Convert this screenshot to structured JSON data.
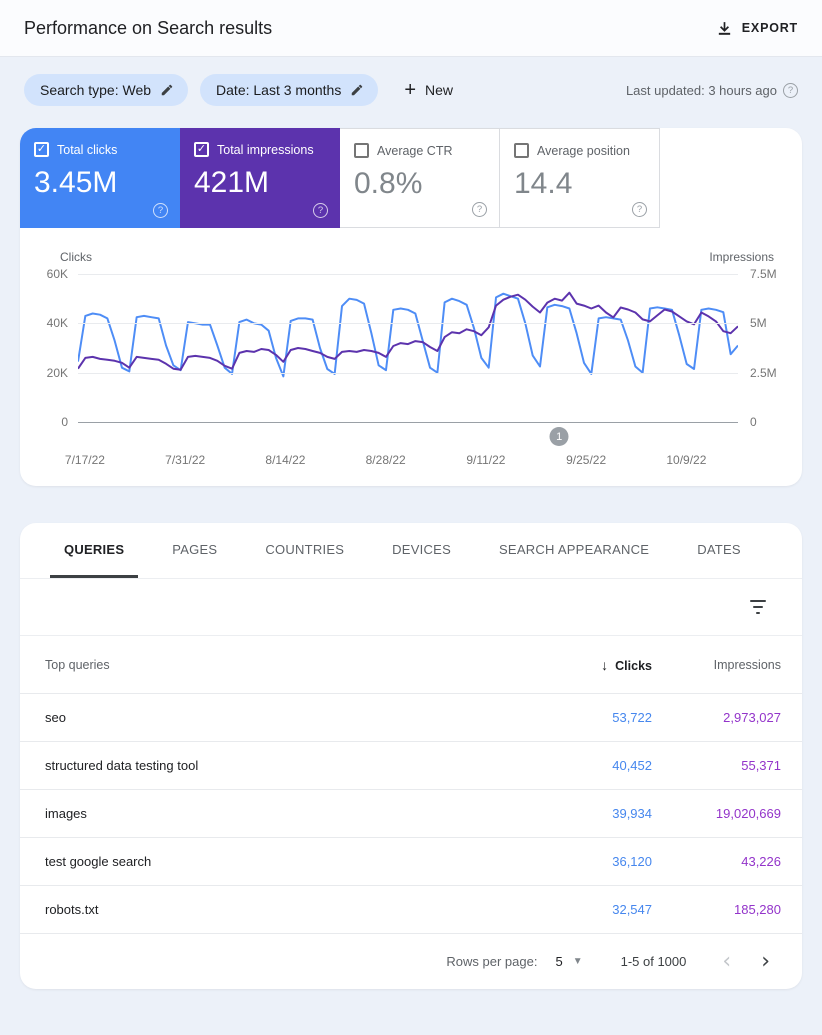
{
  "header": {
    "title": "Performance on Search results",
    "export_label": "EXPORT"
  },
  "filters": {
    "chips": [
      {
        "label": "Search type: Web"
      },
      {
        "label": "Date: Last 3 months"
      }
    ],
    "new_label": "New",
    "last_updated": "Last updated: 3 hours ago"
  },
  "icons": {
    "plus": "+",
    "check": "✓",
    "help": "?",
    "sort_desc": "↓",
    "dropdown": "▼",
    "chevron_left": "‹",
    "chevron_right": "›"
  },
  "metrics": [
    {
      "label": "Total clicks",
      "value": "3.45M",
      "checked": true,
      "color": "#4285f4"
    },
    {
      "label": "Total impressions",
      "value": "421M",
      "checked": true,
      "color": "#5c33ad"
    },
    {
      "label": "Average CTR",
      "value": "0.8%",
      "checked": false,
      "color": ""
    },
    {
      "label": "Average position",
      "value": "14.4",
      "checked": false,
      "color": ""
    }
  ],
  "chart_data": {
    "type": "line",
    "title": "",
    "left_axis": {
      "label": "Clicks",
      "ticks": [
        "60K",
        "40K",
        "20K",
        "0"
      ],
      "max": 60000
    },
    "right_axis": {
      "label": "Impressions",
      "ticks": [
        "7.5M",
        "5M",
        "2.5M",
        "0"
      ],
      "max": 7500000
    },
    "x_tick_labels": [
      "7/17/22",
      "7/31/22",
      "8/14/22",
      "8/28/22",
      "9/11/22",
      "9/25/22",
      "10/9/22"
    ],
    "grid": true,
    "marker": {
      "label": "1",
      "position_fraction": 0.729
    },
    "series": [
      {
        "name": "Clicks",
        "axis": "left",
        "color": "#4e8df6",
        "values": [
          24500,
          43000,
          44000,
          43500,
          42000,
          33000,
          22000,
          20500,
          42500,
          43000,
          42500,
          42000,
          31000,
          23000,
          21000,
          40500,
          40000,
          39500,
          39500,
          31000,
          22000,
          19500,
          40500,
          41500,
          40000,
          39500,
          37000,
          26000,
          18500,
          41000,
          42000,
          42000,
          41500,
          30000,
          21500,
          19500,
          47000,
          50000,
          49500,
          48000,
          36000,
          23000,
          21000,
          45500,
          46000,
          45500,
          44000,
          33000,
          22000,
          20000,
          48500,
          50000,
          49000,
          47500,
          38000,
          26000,
          22000,
          50500,
          52000,
          51000,
          50000,
          40000,
          27000,
          22500,
          46500,
          47500,
          47000,
          46000,
          36000,
          24000,
          19500,
          42000,
          42500,
          42000,
          41500,
          33000,
          22500,
          20000,
          46000,
          46500,
          46000,
          45500,
          35000,
          23500,
          21500,
          45500,
          46000,
          45500,
          44500,
          27500,
          31000
        ]
      },
      {
        "name": "Impressions",
        "axis": "right",
        "color": "#5c33ad",
        "values": [
          2700000,
          3250000,
          3300000,
          3200000,
          3150000,
          3100000,
          3000000,
          2750000,
          3300000,
          3250000,
          3200000,
          3150000,
          2950000,
          2700000,
          2650000,
          3300000,
          3350000,
          3300000,
          3250000,
          3100000,
          2850000,
          2700000,
          3500000,
          3600000,
          3550000,
          3700000,
          3650000,
          3400000,
          3050000,
          3650000,
          3750000,
          3700000,
          3600000,
          3500000,
          3300000,
          3200000,
          3550000,
          3600000,
          3550000,
          3650000,
          3600000,
          3500000,
          3300000,
          3850000,
          4000000,
          3950000,
          4100000,
          4050000,
          3800000,
          3600000,
          4300000,
          4550000,
          4500000,
          4700000,
          4600000,
          4400000,
          4800000,
          5900000,
          6200000,
          6350000,
          6450000,
          6200000,
          5850000,
          5550000,
          6050000,
          6250000,
          6150000,
          6550000,
          6000000,
          5900000,
          5750000,
          5900000,
          5550000,
          5300000,
          5800000,
          5700000,
          5550000,
          5200000,
          5100000,
          5400000,
          5700000,
          5600000,
          5350000,
          5100000,
          4950000,
          5550000,
          5350000,
          5100000,
          4600000,
          4500000,
          4850000
        ]
      }
    ]
  },
  "tabs": [
    {
      "label": "QUERIES",
      "active": true
    },
    {
      "label": "PAGES",
      "active": false
    },
    {
      "label": "COUNTRIES",
      "active": false
    },
    {
      "label": "DEVICES",
      "active": false
    },
    {
      "label": "SEARCH APPEARANCE",
      "active": false
    },
    {
      "label": "DATES",
      "active": false
    }
  ],
  "table": {
    "columns": {
      "query": "Top queries",
      "clicks": "Clicks",
      "impressions": "Impressions"
    },
    "sorted_by": "Clicks",
    "rows": [
      {
        "query": "seo",
        "clicks": "53,722",
        "impressions": "2,973,027"
      },
      {
        "query": "structured data testing tool",
        "clicks": "40,452",
        "impressions": "55,371"
      },
      {
        "query": "images",
        "clicks": "39,934",
        "impressions": "19,020,669"
      },
      {
        "query": "test google search",
        "clicks": "36,120",
        "impressions": "43,226"
      },
      {
        "query": "robots.txt",
        "clicks": "32,547",
        "impressions": "185,280"
      }
    ]
  },
  "pagination": {
    "rows_per_page_label": "Rows per page:",
    "rows_per_page": "5",
    "range": "1-5 of 1000"
  }
}
